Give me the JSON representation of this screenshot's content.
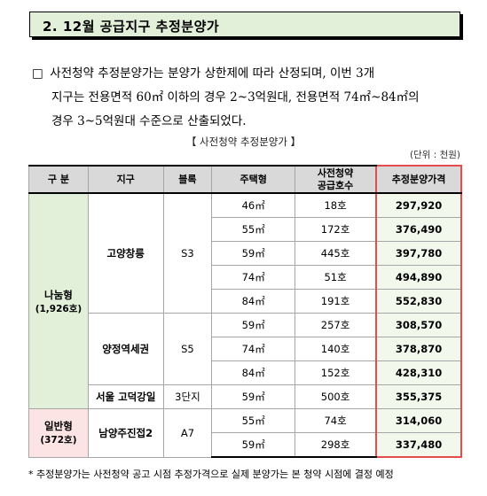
{
  "section": {
    "title": "2. 12월 공급지구 추정분양가"
  },
  "paragraph": {
    "bullet": "□",
    "line1": "사전청약 추정분양가는 분양가 상한제에 따라 산정되며, 이번 3개",
    "line2": "지구는 전용면적 60㎡ 이하의 경우 2~3억원대, 전용면적 74㎡~84㎡의",
    "line3": "경우 3~5억원대 수준으로 산출되었다."
  },
  "table_caption": "【 사전청약 추정분양가 】",
  "unit": "(단위 : 천원)",
  "headers": {
    "category": "구  분",
    "district": "지구",
    "block": "블록",
    "type": "주택형",
    "supply": "사전청약\n공급호수",
    "price": "추정분양가격"
  },
  "groups": {
    "share": {
      "name": "나눔형",
      "count": "(1,926호)"
    },
    "general": {
      "name": "일반형",
      "count": "(372호)"
    }
  },
  "districts": {
    "d1": {
      "name": "고양창릉",
      "block": "S3"
    },
    "d2": {
      "name": "양정역세권",
      "block": "S5"
    },
    "d3": {
      "name": "서울 고덕강일",
      "block": "3단지"
    },
    "d4": {
      "name": "남양주진접2",
      "block": "A7"
    }
  },
  "rows": [
    {
      "type": "46㎡",
      "supply": "18호",
      "price": "297,920"
    },
    {
      "type": "55㎡",
      "supply": "172호",
      "price": "376,490"
    },
    {
      "type": "59㎡",
      "supply": "445호",
      "price": "397,780"
    },
    {
      "type": "74㎡",
      "supply": "51호",
      "price": "494,890"
    },
    {
      "type": "84㎡",
      "supply": "191호",
      "price": "552,830"
    },
    {
      "type": "59㎡",
      "supply": "257호",
      "price": "308,570"
    },
    {
      "type": "74㎡",
      "supply": "140호",
      "price": "378,870"
    },
    {
      "type": "84㎡",
      "supply": "152호",
      "price": "428,310"
    },
    {
      "type": "59㎡",
      "supply": "500호",
      "price": "355,375"
    },
    {
      "type": "55㎡",
      "supply": "74호",
      "price": "314,060"
    },
    {
      "type": "59㎡",
      "supply": "298호",
      "price": "337,480"
    }
  ],
  "footnote": "* 추정분양가는 사전청약 공고 시점 추정가격으로 실제 분양가는 본 청약 시점에 결정 예정"
}
